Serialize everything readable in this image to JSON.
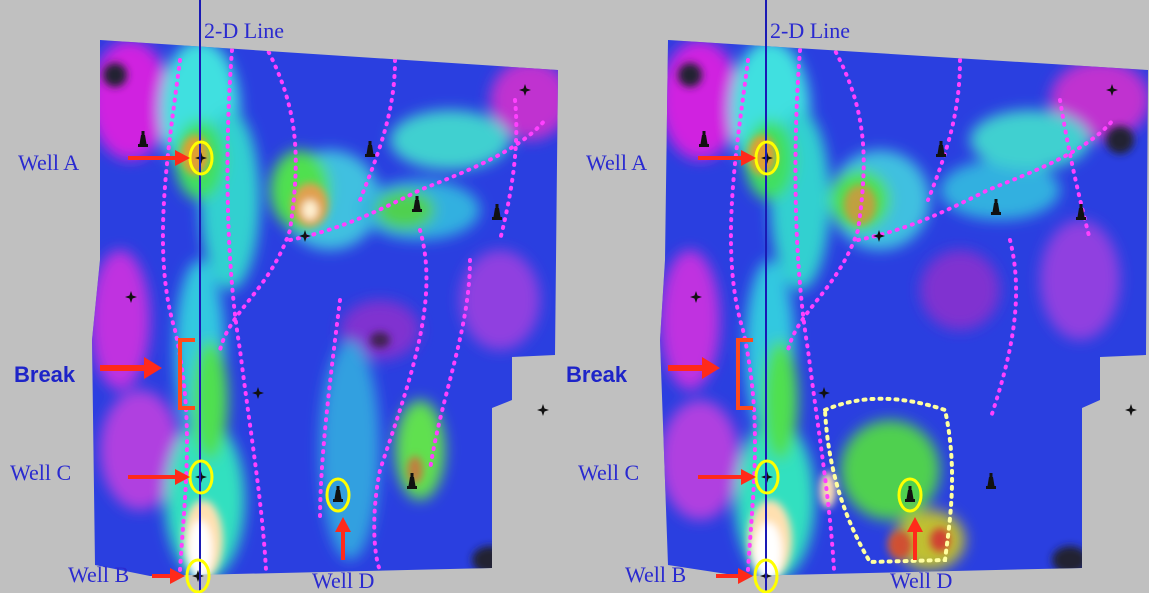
{
  "panels": [
    {
      "id": "left",
      "line_label": "2-D Line",
      "well_labels": {
        "a": "Well A",
        "b": "Well B",
        "c": "Well C",
        "d": "Well D"
      },
      "break_label": "Break"
    },
    {
      "id": "right",
      "line_label": "2-D Line",
      "well_labels": {
        "a": "Well A",
        "b": "Well B",
        "c": "Well C",
        "d": "Well D"
      },
      "break_label": "Break"
    }
  ],
  "colors": {
    "background": "#c0c0c0",
    "map_base": "#2a3fe0",
    "line": "#1a1ab4",
    "label": "#2a2ad0",
    "arrow": "#ff2a1a",
    "well_circle": "#ffff00",
    "fault_dots": "#ff40ff",
    "outline_dots": "#ffffa0"
  },
  "icons": [
    "well-derrick-icon",
    "well-star-icon",
    "red-arrow-icon",
    "bracket-icon"
  ]
}
